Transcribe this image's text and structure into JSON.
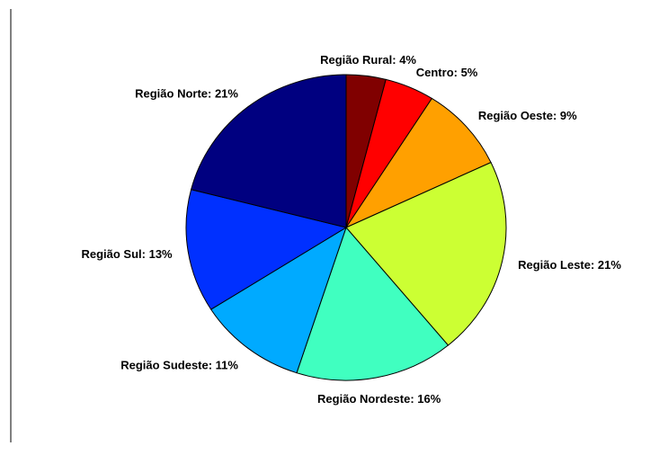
{
  "chart_data": {
    "type": "pie",
    "values": [
      4,
      5,
      9,
      21,
      16,
      11,
      13,
      21
    ],
    "value_labels": [
      "Região Rural: 4%",
      "Centro: 5%",
      "Região Oeste: 9%",
      "Região Leste: 21%",
      "Região Nordeste: 16%",
      "Região Sudeste: 11%",
      "Região Sul: 13%",
      "Região Norte: 21%"
    ],
    "colors": [
      "#800000",
      "#ff0000",
      "#ffa000",
      "#ccff33",
      "#40ffc0",
      "#00aaff",
      "#0030ff",
      "#000080"
    ]
  }
}
